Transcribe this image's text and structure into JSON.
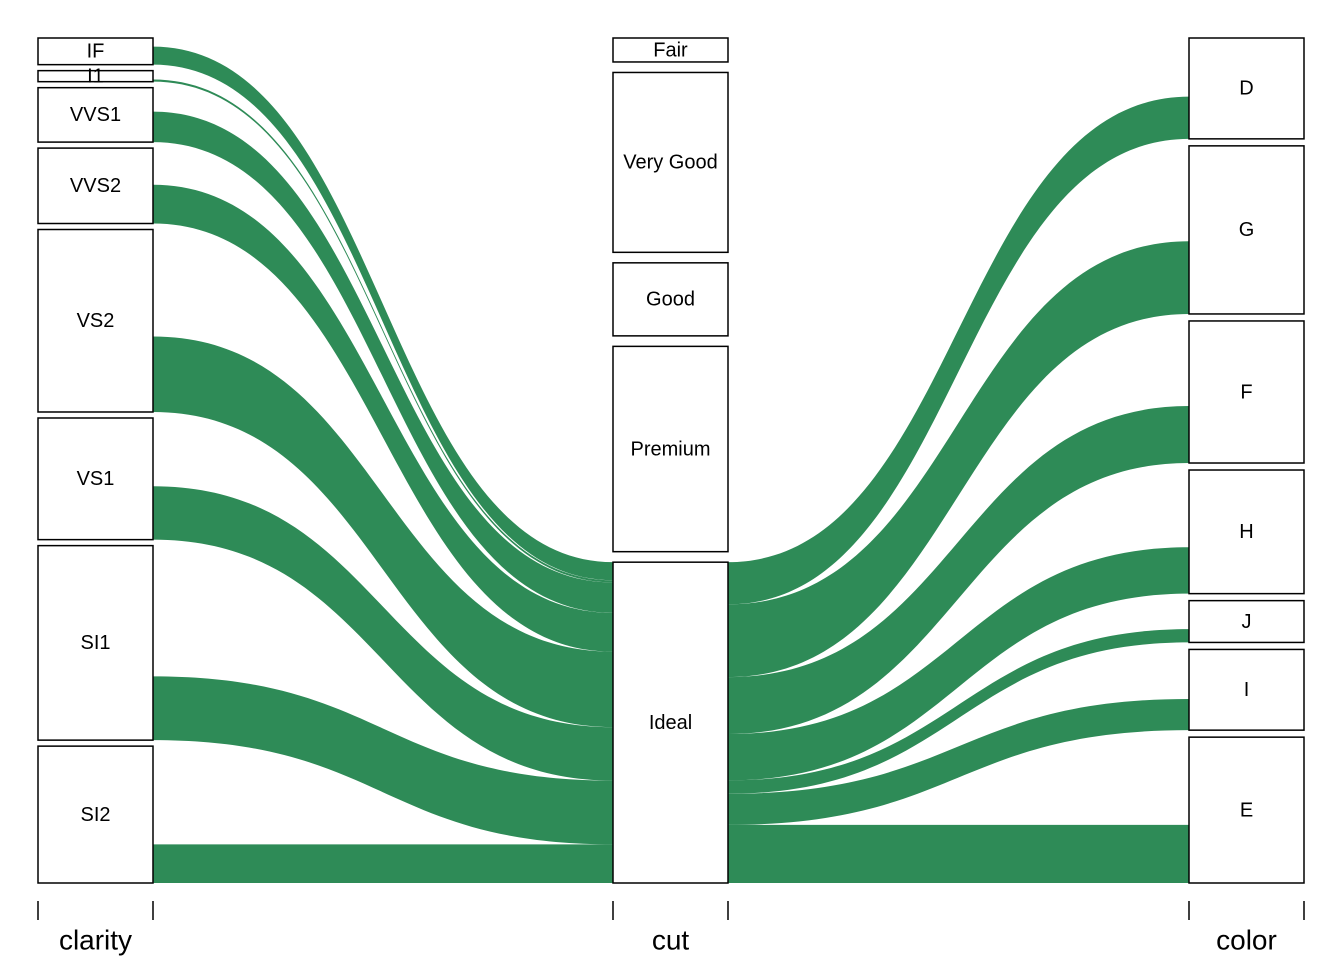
{
  "chart_data": {
    "type": "alluvial",
    "flow_color": "#2e8b57",
    "axes": [
      {
        "name": "clarity",
        "strata": [
          {
            "name": "IF",
            "value": 1790,
            "flow": 1212
          },
          {
            "name": "I1",
            "value": 741,
            "flow": 146
          },
          {
            "name": "VVS1",
            "value": 3655,
            "flow": 2047
          },
          {
            "name": "VVS2",
            "value": 5066,
            "flow": 2606
          },
          {
            "name": "VS2",
            "value": 12258,
            "flow": 5071
          },
          {
            "name": "VS1",
            "value": 8171,
            "flow": 3589
          },
          {
            "name": "SI1",
            "value": 13065,
            "flow": 4282
          },
          {
            "name": "SI2",
            "value": 9194,
            "flow": 2598
          }
        ]
      },
      {
        "name": "cut",
        "strata": [
          {
            "name": "Fair",
            "value": 1610
          },
          {
            "name": "Very Good",
            "value": 12082
          },
          {
            "name": "Good",
            "value": 4906
          },
          {
            "name": "Premium",
            "value": 13791
          },
          {
            "name": "Ideal",
            "value": 21551
          }
        ]
      },
      {
        "name": "color",
        "strata": [
          {
            "name": "D",
            "value": 6775,
            "flow": 2834
          },
          {
            "name": "G",
            "value": 11292,
            "flow": 4884
          },
          {
            "name": "F",
            "value": 9542,
            "flow": 3826
          },
          {
            "name": "H",
            "value": 8304,
            "flow": 3115
          },
          {
            "name": "J",
            "value": 2808,
            "flow": 896
          },
          {
            "name": "I",
            "value": 5422,
            "flow": 2093
          },
          {
            "name": "E",
            "value": 9797,
            "flow": 3903
          }
        ]
      }
    ]
  }
}
